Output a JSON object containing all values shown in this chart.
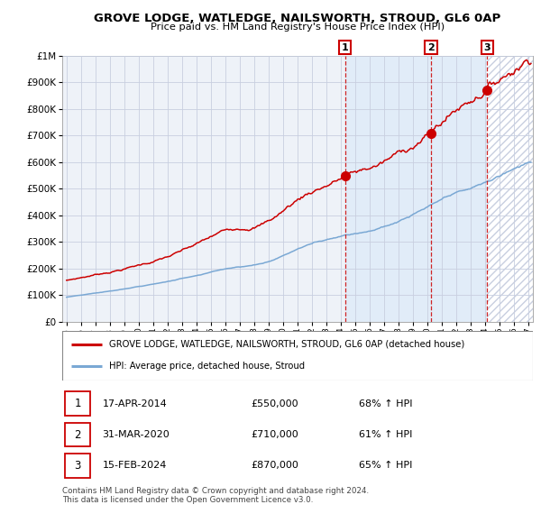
{
  "title": "GROVE LODGE, WATLEDGE, NAILSWORTH, STROUD, GL6 0AP",
  "subtitle": "Price paid vs. HM Land Registry's House Price Index (HPI)",
  "red_label": "GROVE LODGE, WATLEDGE, NAILSWORTH, STROUD, GL6 0AP (detached house)",
  "blue_label": "HPI: Average price, detached house, Stroud",
  "sale1_label": "17-APR-2014",
  "sale1_price": 550000,
  "sale1_pct": "68%",
  "sale1_t": 2014.292,
  "sale2_label": "31-MAR-2020",
  "sale2_price": 710000,
  "sale2_pct": "61%",
  "sale2_t": 2020.25,
  "sale3_label": "15-FEB-2024",
  "sale3_price": 870000,
  "sale3_pct": "65%",
  "sale3_t": 2024.125,
  "xmin_year": 1994.7,
  "xmax_year": 2027.3,
  "ymin": 0,
  "ymax": 1000000,
  "yticks": [
    0,
    100000,
    200000,
    300000,
    400000,
    500000,
    600000,
    700000,
    800000,
    900000,
    1000000
  ],
  "background_color": "#ffffff",
  "plot_bg_color": "#eef2f8",
  "grid_color": "#c8cfe0",
  "red_color": "#cc0000",
  "blue_color": "#7aa8d4",
  "hatch_color": "#c8cfe0",
  "footnote": "Contains HM Land Registry data © Crown copyright and database right 2024.\nThis data is licensed under the Open Government Licence v3.0.",
  "xtick_years": [
    1995,
    1996,
    1997,
    1998,
    1999,
    2000,
    2001,
    2002,
    2003,
    2004,
    2005,
    2006,
    2007,
    2008,
    2009,
    2010,
    2011,
    2012,
    2013,
    2014,
    2015,
    2016,
    2017,
    2018,
    2019,
    2020,
    2021,
    2022,
    2023,
    2024,
    2025,
    2026,
    2027
  ]
}
